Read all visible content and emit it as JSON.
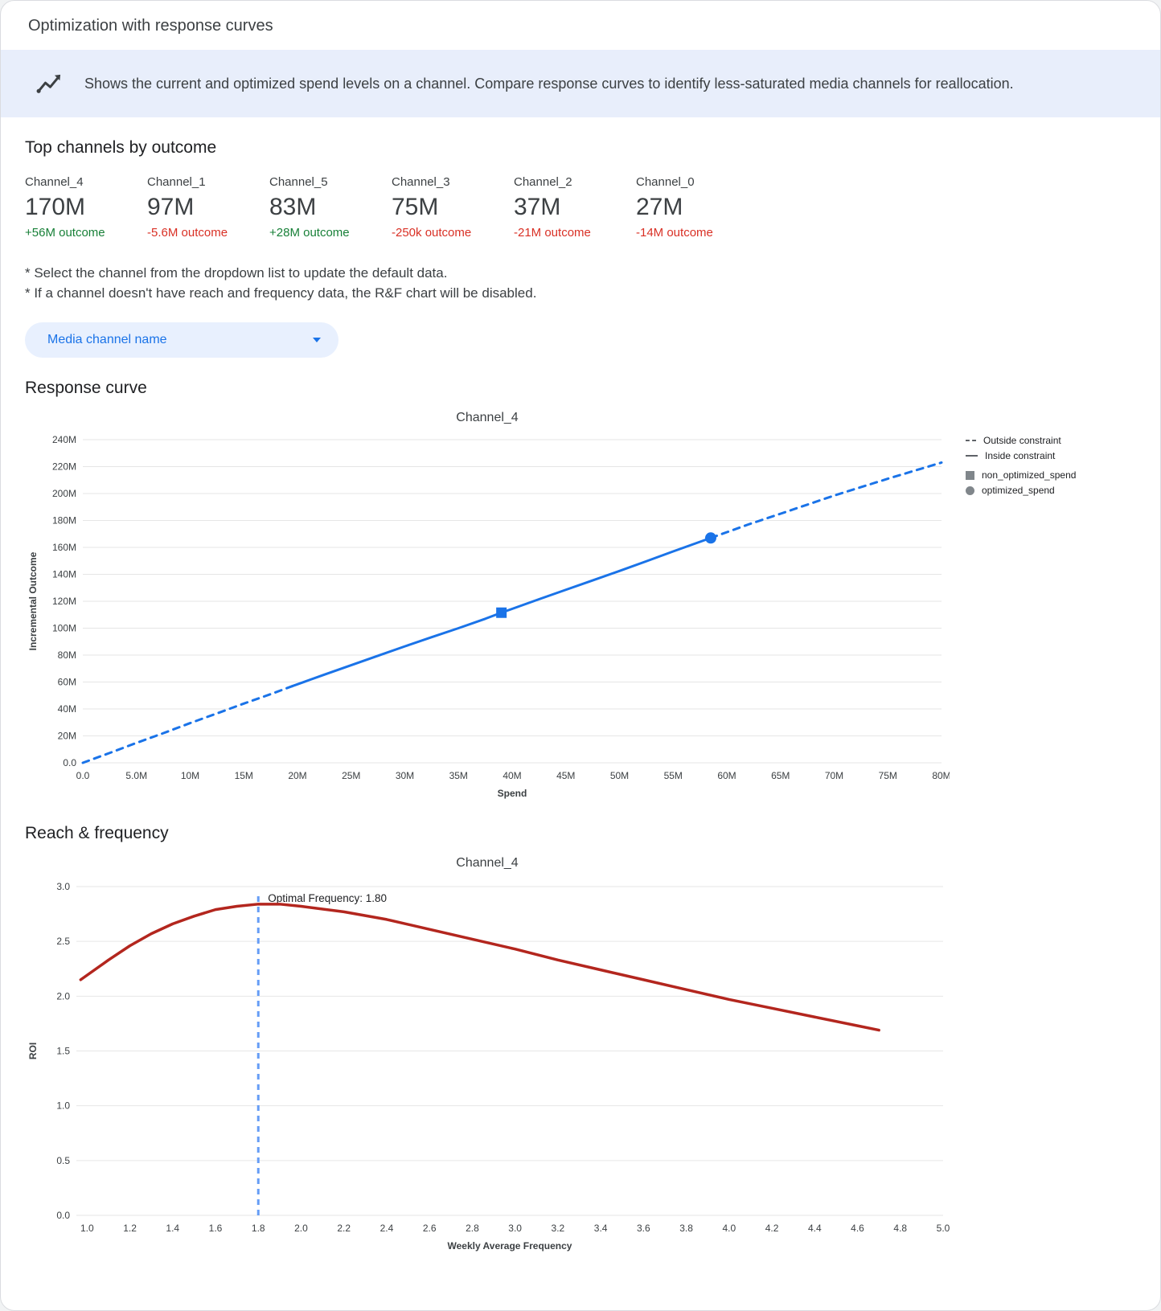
{
  "header": {
    "title": "Optimization with response curves"
  },
  "banner": {
    "icon": "trend-line-icon",
    "text": "Shows the current and optimized spend levels on a channel. Compare response curves to identify less-saturated media channels for reallocation."
  },
  "top_channels": {
    "heading": "Top channels by outcome",
    "channels": [
      {
        "name": "Channel_4",
        "value": "170M",
        "delta": "+56M outcome",
        "direction": "up"
      },
      {
        "name": "Channel_1",
        "value": "97M",
        "delta": "-5.6M outcome",
        "direction": "down"
      },
      {
        "name": "Channel_5",
        "value": "83M",
        "delta": "+28M outcome",
        "direction": "up"
      },
      {
        "name": "Channel_3",
        "value": "75M",
        "delta": "-250k outcome",
        "direction": "down"
      },
      {
        "name": "Channel_2",
        "value": "37M",
        "delta": "-21M outcome",
        "direction": "down"
      },
      {
        "name": "Channel_0",
        "value": "27M",
        "delta": "-14M outcome",
        "direction": "down"
      }
    ]
  },
  "notes": [
    "* Select the channel from the dropdown list to update the default data.",
    "* If a channel doesn't have reach and frequency data, the R&F chart will be disabled."
  ],
  "dropdown": {
    "label": "Media channel name"
  },
  "sections": {
    "response_curve": {
      "heading": "Response curve"
    },
    "reach_frequency": {
      "heading": "Reach & frequency"
    }
  },
  "chart_data": [
    {
      "type": "line",
      "name": "response_curve",
      "title": "Channel_4",
      "xlabel": "Spend",
      "ylabel": "Incremental Outcome",
      "xlim": [
        0,
        80
      ],
      "ylim": [
        0,
        240
      ],
      "xticks": [
        0,
        5,
        10,
        15,
        20,
        25,
        30,
        35,
        40,
        45,
        50,
        55,
        60,
        65,
        70,
        75,
        80
      ],
      "xtick_labels": [
        "0.0",
        "5.0M",
        "10M",
        "15M",
        "20M",
        "25M",
        "30M",
        "35M",
        "40M",
        "45M",
        "50M",
        "55M",
        "60M",
        "65M",
        "70M",
        "75M",
        "80M"
      ],
      "yticks": [
        0,
        20,
        40,
        60,
        80,
        100,
        120,
        140,
        160,
        180,
        200,
        220,
        240
      ],
      "ytick_labels": [
        "0.0",
        "20M",
        "40M",
        "60M",
        "80M",
        "100M",
        "120M",
        "140M",
        "160M",
        "180M",
        "200M",
        "220M",
        "240M"
      ],
      "line_color": "#1a73e8",
      "series": [
        {
          "name": "outside_constraint_low",
          "style": "dashed",
          "points": [
            [
              0,
              0
            ],
            [
              2.5,
              7.3
            ],
            [
              5,
              14.8
            ],
            [
              7.5,
              22
            ],
            [
              10,
              29.5
            ],
            [
              12.5,
              36.7
            ],
            [
              15,
              44
            ],
            [
              17.5,
              51
            ],
            [
              19.5,
              56.9
            ]
          ]
        },
        {
          "name": "inside_constraint",
          "style": "solid",
          "points": [
            [
              19.5,
              56.9
            ],
            [
              22.5,
              65.5
            ],
            [
              25,
              72.5
            ],
            [
              27.5,
              79.5
            ],
            [
              30,
              86.5
            ],
            [
              32.5,
              93.3
            ],
            [
              35,
              100
            ],
            [
              37.5,
              107
            ],
            [
              39,
              111.5
            ],
            [
              42.5,
              121.5
            ],
            [
              45,
              128.5
            ],
            [
              47.5,
              135.5
            ],
            [
              50,
              142.5
            ],
            [
              52.5,
              149.7
            ],
            [
              55,
              157
            ],
            [
              58.5,
              167
            ]
          ]
        },
        {
          "name": "outside_constraint_high",
          "style": "dashed",
          "points": [
            [
              58.5,
              167
            ],
            [
              62,
              177
            ],
            [
              65,
              185
            ],
            [
              70,
              198.5
            ],
            [
              75,
              211
            ],
            [
              80,
              223
            ]
          ]
        }
      ],
      "markers": [
        {
          "name": "non_optimized_spend",
          "shape": "square",
          "x": 39,
          "y": 111.5
        },
        {
          "name": "optimized_spend",
          "shape": "circle",
          "x": 58.5,
          "y": 167
        }
      ],
      "legend": [
        {
          "label": "Outside constraint",
          "swatch": "dashed-line"
        },
        {
          "label": "Inside constraint",
          "swatch": "solid-line"
        },
        {
          "label": "non_optimized_spend",
          "swatch": "square"
        },
        {
          "label": "optimized_spend",
          "swatch": "circle"
        }
      ]
    },
    {
      "type": "line",
      "name": "reach_and_frequency",
      "title": "Channel_4",
      "xlabel": "Weekly Average Frequency",
      "ylabel": "ROI",
      "xlim": [
        0.95,
        5.0
      ],
      "ylim": [
        0,
        3
      ],
      "xticks": [
        1.0,
        1.2,
        1.4,
        1.6,
        1.8,
        2.0,
        2.2,
        2.4,
        2.6,
        2.8,
        3.0,
        3.2,
        3.4,
        3.6,
        3.8,
        4.0,
        4.2,
        4.4,
        4.6,
        4.8,
        5.0
      ],
      "xtick_labels": [
        "1.0",
        "1.2",
        "1.4",
        "1.6",
        "1.8",
        "2.0",
        "2.2",
        "2.4",
        "2.6",
        "2.8",
        "3.0",
        "3.2",
        "3.4",
        "3.6",
        "3.8",
        "4.0",
        "4.2",
        "4.4",
        "4.6",
        "4.8",
        "5.0"
      ],
      "yticks": [
        0,
        0.5,
        1.0,
        1.5,
        2.0,
        2.5,
        3.0
      ],
      "ytick_labels": [
        "0.0",
        "0.5",
        "1.0",
        "1.5",
        "2.0",
        "2.5",
        "3.0"
      ],
      "line_color": "#b3261e",
      "series": [
        {
          "name": "roi_curve",
          "style": "solid",
          "width": 3.5,
          "points": [
            [
              0.97,
              2.15
            ],
            [
              1.1,
              2.33
            ],
            [
              1.2,
              2.46
            ],
            [
              1.3,
              2.57
            ],
            [
              1.4,
              2.66
            ],
            [
              1.5,
              2.73
            ],
            [
              1.6,
              2.79
            ],
            [
              1.7,
              2.82
            ],
            [
              1.8,
              2.84
            ],
            [
              1.9,
              2.84
            ],
            [
              2.0,
              2.82
            ],
            [
              2.2,
              2.77
            ],
            [
              2.4,
              2.7
            ],
            [
              2.6,
              2.61
            ],
            [
              2.8,
              2.52
            ],
            [
              3.0,
              2.43
            ],
            [
              3.2,
              2.33
            ],
            [
              3.4,
              2.24
            ],
            [
              3.6,
              2.15
            ],
            [
              3.8,
              2.06
            ],
            [
              4.0,
              1.97
            ],
            [
              4.2,
              1.89
            ],
            [
              4.4,
              1.81
            ],
            [
              4.6,
              1.73
            ],
            [
              4.7,
              1.69
            ]
          ]
        }
      ],
      "vline": {
        "x": 1.8,
        "top": 2.92,
        "label": "Optimal Frequency: 1.80",
        "color": "#669df6"
      }
    }
  ]
}
